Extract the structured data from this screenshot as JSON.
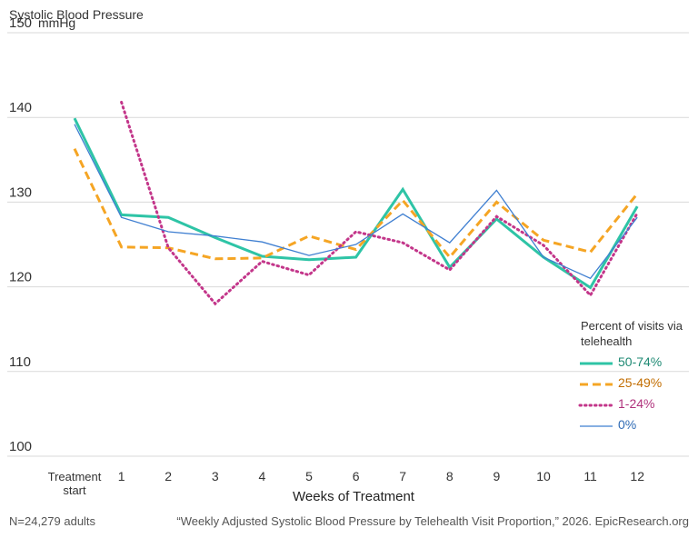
{
  "chart_data": {
    "type": "line",
    "title": "Systolic Blood Pressure",
    "ylabel": "mmHg",
    "xlabel": "Weeks of Treatment",
    "categories": [
      "Treatment start",
      "1",
      "2",
      "3",
      "4",
      "5",
      "6",
      "7",
      "8",
      "9",
      "10",
      "11",
      "12"
    ],
    "ylim": [
      100,
      150
    ],
    "yticks": [
      100,
      110,
      120,
      130,
      140,
      150
    ],
    "grid": true,
    "legend_title": "Percent of visits via telehealth",
    "legend_position": "right",
    "series": [
      {
        "name": "50-74%",
        "color": "#2ec4a6",
        "style": "solid-thick",
        "values": [
          139.9,
          128.5,
          128.2,
          125.8,
          123.6,
          123.2,
          123.5,
          131.5,
          122.3,
          128.0,
          123.5,
          119.9,
          129.5
        ]
      },
      {
        "name": "25-49%",
        "color": "#f5a524",
        "style": "dashed",
        "values": [
          136.3,
          124.7,
          124.6,
          123.3,
          123.4,
          126.0,
          124.4,
          130.2,
          123.5,
          130.0,
          125.5,
          124.1,
          131.0
        ]
      },
      {
        "name": "1-24%",
        "color": "#c3368a",
        "style": "dotted",
        "values": [
          null,
          141.8,
          124.6,
          118.0,
          123.0,
          121.4,
          126.5,
          125.2,
          122.0,
          128.3,
          124.9,
          119.0,
          128.7
        ]
      },
      {
        "name": "0%",
        "color": "#3f7fd1",
        "style": "solid-thin",
        "values": [
          139.2,
          128.2,
          126.5,
          126.0,
          125.3,
          123.7,
          125.0,
          128.6,
          125.2,
          131.4,
          123.5,
          121.0,
          128.2
        ]
      }
    ],
    "label_colors": {
      "50-74%": "#1f8a74",
      "25-49%": "#c26d00",
      "1-24%": "#b0327c",
      "0%": "#2f6bb5"
    }
  },
  "footer": {
    "sample": "N=24,279 adults",
    "source": "“Weekly Adjusted Systolic Blood Pressure by Telehealth Visit Proportion,” 2026. EpicResearch.org"
  }
}
